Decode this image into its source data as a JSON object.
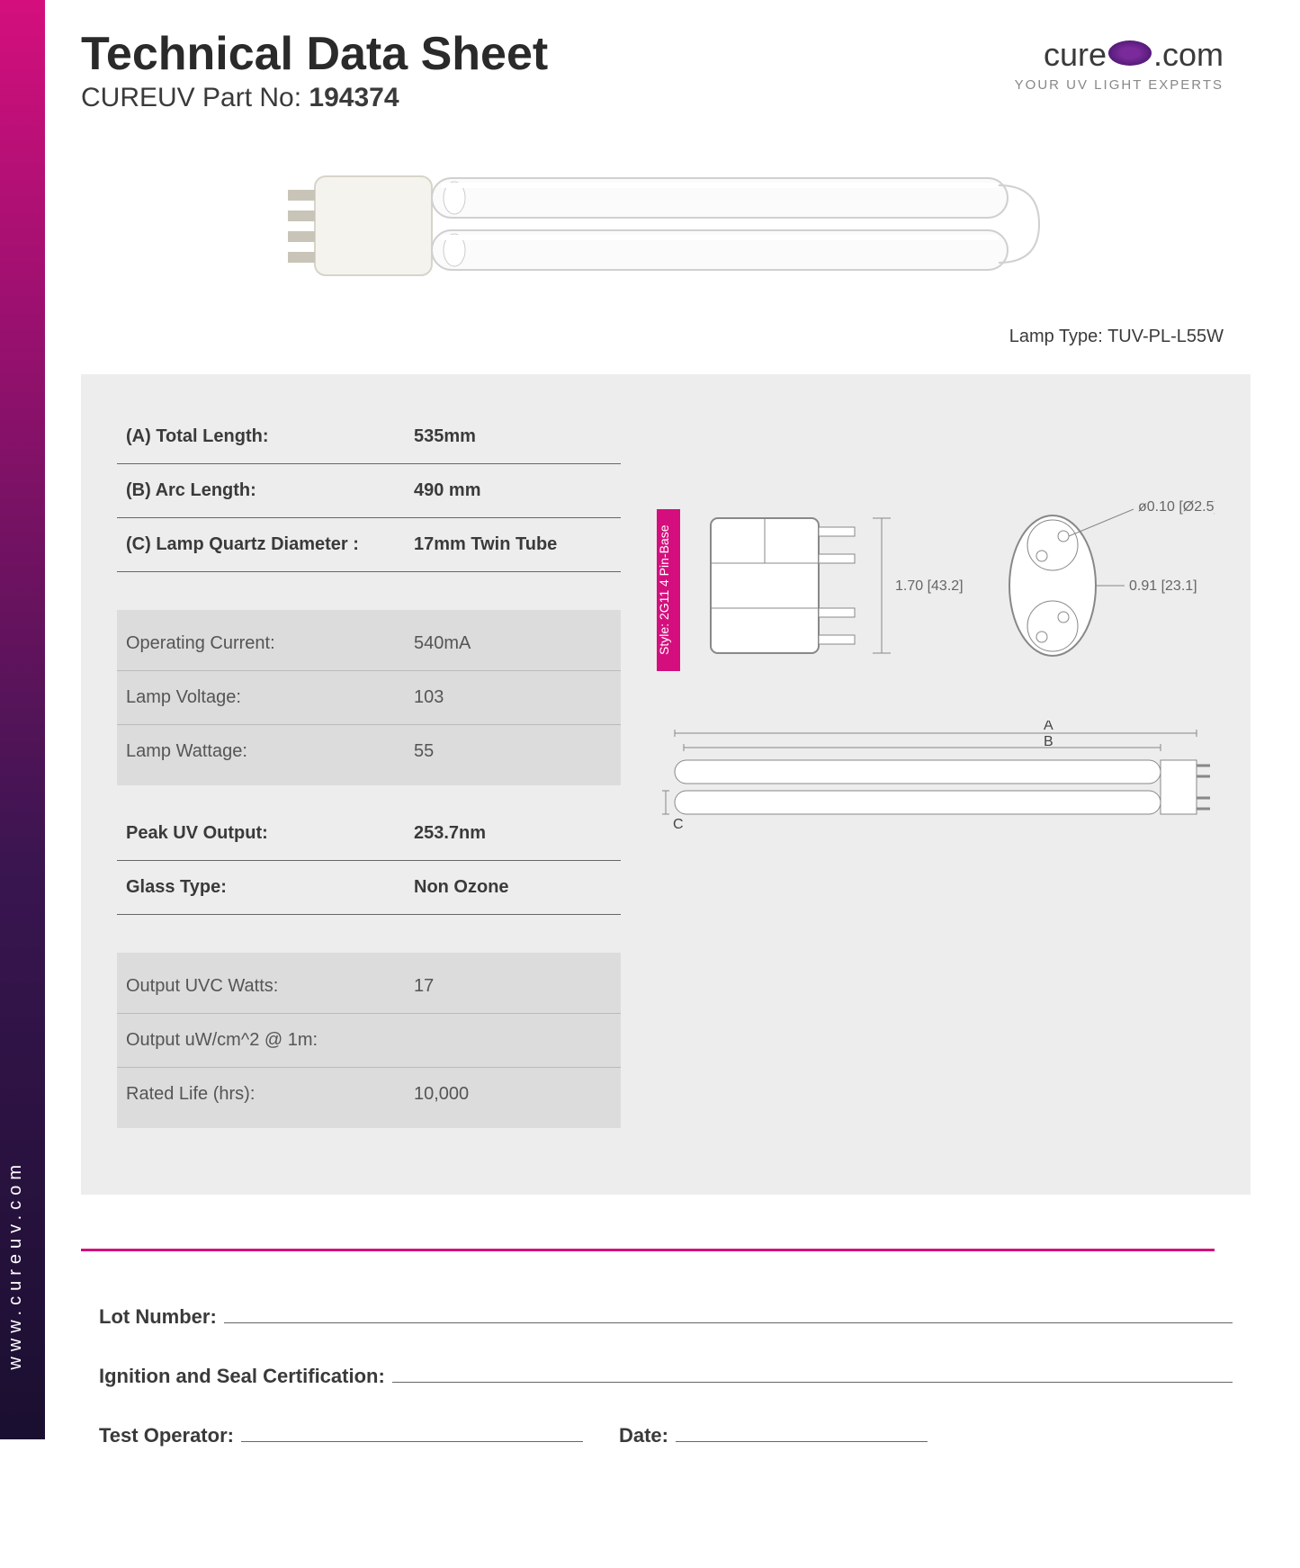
{
  "side_url": "www.cureuv.com",
  "header": {
    "title": "Technical Data Sheet",
    "partno_prefix": "CUREUV Part No:",
    "partno": "194374"
  },
  "logo": {
    "brand_pre": "cure",
    "brand_post": ".com",
    "tagline": "YOUR UV LIGHT EXPERTS"
  },
  "lamp_type_label": "Lamp Type:",
  "lamp_type_value": "TUV-PL-L55W",
  "specs": {
    "group1": [
      {
        "label": "(A) Total Length:",
        "value": "535mm"
      },
      {
        "label": "(B) Arc Length:",
        "value": "490 mm"
      },
      {
        "label": "(C) Lamp Quartz Diameter :",
        "value": "17mm Twin Tube"
      }
    ],
    "group2": [
      {
        "label": "Operating Current:",
        "value": "540mA"
      },
      {
        "label": "Lamp Voltage:",
        "value": "103"
      },
      {
        "label": "Lamp Wattage:",
        "value": "55"
      }
    ],
    "group3": [
      {
        "label": "Peak UV Output:",
        "value": "253.7nm"
      },
      {
        "label": "Glass Type:",
        "value": "Non Ozone"
      }
    ],
    "group4": [
      {
        "label": "Output UVC Watts:",
        "value": "17"
      },
      {
        "label": "Output uW/cm^2 @ 1m:",
        "value": ""
      },
      {
        "label": "Rated Life (hrs):",
        "value": "10,000"
      }
    ]
  },
  "pin_base_text": "Style: 2G11 4 Pin-Base",
  "diagram": {
    "dim_height": "1.70  [43.2]",
    "dim_width": "0.91  [23.1]",
    "dim_pin": "ø0.10  [Ø2.5]",
    "label_a": "A",
    "label_b": "B",
    "label_c": "C"
  },
  "cert": {
    "lot": "Lot Number:",
    "ignition": "Ignition and Seal Certification:",
    "test_op": "Test Operator:",
    "date": "Date:"
  },
  "colors": {
    "accent": "#d40f7d",
    "panel_bg": "#ededed",
    "sub_panel_bg": "#dcdcdc",
    "text": "#3a3a3a"
  }
}
